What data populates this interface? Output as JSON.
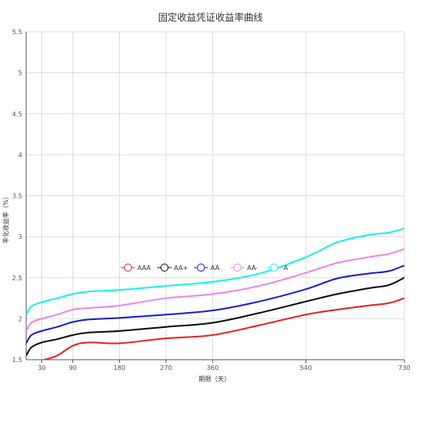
{
  "chart_data": {
    "type": "line",
    "title": "固定收益凭证收益率曲线",
    "xlabel": "期限（天）",
    "ylabel": "年化收益率（%）",
    "xlim": [
      0,
      730
    ],
    "ylim": [
      1.5,
      5.5
    ],
    "x_ticks": [
      30,
      90,
      180,
      270,
      360,
      540,
      730
    ],
    "y_ticks": [
      1.5,
      2,
      2.5,
      3,
      3.5,
      4,
      4.5,
      5,
      5.5
    ],
    "grid": true,
    "legend_position": "center",
    "series": [
      {
        "name": "AAA",
        "color": "#e52020",
        "points": [
          [
            20,
            1.48
          ],
          [
            30,
            1.49
          ],
          [
            60,
            1.55
          ],
          [
            90,
            1.67
          ],
          [
            120,
            1.71
          ],
          [
            180,
            1.7
          ],
          [
            270,
            1.76
          ],
          [
            360,
            1.8
          ],
          [
            450,
            1.92
          ],
          [
            540,
            2.05
          ],
          [
            600,
            2.11
          ],
          [
            660,
            2.16
          ],
          [
            700,
            2.19
          ],
          [
            730,
            2.25
          ]
        ]
      },
      {
        "name": "AA+",
        "color": "#0a0a0a",
        "points": [
          [
            0,
            1.55
          ],
          [
            10,
            1.65
          ],
          [
            30,
            1.71
          ],
          [
            60,
            1.75
          ],
          [
            90,
            1.8
          ],
          [
            120,
            1.83
          ],
          [
            180,
            1.85
          ],
          [
            270,
            1.9
          ],
          [
            360,
            1.95
          ],
          [
            450,
            2.07
          ],
          [
            540,
            2.21
          ],
          [
            600,
            2.3
          ],
          [
            660,
            2.37
          ],
          [
            700,
            2.41
          ],
          [
            730,
            2.5
          ]
        ]
      },
      {
        "name": "AA",
        "color": "#1a1ad4",
        "points": [
          [
            0,
            1.7
          ],
          [
            10,
            1.8
          ],
          [
            30,
            1.85
          ],
          [
            60,
            1.9
          ],
          [
            90,
            1.96
          ],
          [
            120,
            1.99
          ],
          [
            180,
            2.01
          ],
          [
            270,
            2.05
          ],
          [
            360,
            2.1
          ],
          [
            450,
            2.21
          ],
          [
            540,
            2.36
          ],
          [
            600,
            2.49
          ],
          [
            660,
            2.55
          ],
          [
            700,
            2.58
          ],
          [
            730,
            2.65
          ]
        ]
      },
      {
        "name": "AA-",
        "color": "#ee82ee",
        "points": [
          [
            0,
            1.85
          ],
          [
            10,
            1.95
          ],
          [
            30,
            2.0
          ],
          [
            60,
            2.05
          ],
          [
            90,
            2.11
          ],
          [
            120,
            2.13
          ],
          [
            180,
            2.16
          ],
          [
            270,
            2.25
          ],
          [
            360,
            2.3
          ],
          [
            450,
            2.4
          ],
          [
            540,
            2.56
          ],
          [
            600,
            2.68
          ],
          [
            660,
            2.75
          ],
          [
            700,
            2.79
          ],
          [
            730,
            2.85
          ]
        ]
      },
      {
        "name": "A",
        "color": "#18f0f0",
        "points": [
          [
            0,
            2.05
          ],
          [
            10,
            2.15
          ],
          [
            30,
            2.2
          ],
          [
            60,
            2.25
          ],
          [
            90,
            2.3
          ],
          [
            120,
            2.33
          ],
          [
            180,
            2.35
          ],
          [
            270,
            2.4
          ],
          [
            360,
            2.45
          ],
          [
            450,
            2.55
          ],
          [
            540,
            2.75
          ],
          [
            600,
            2.93
          ],
          [
            660,
            3.02
          ],
          [
            700,
            3.05
          ],
          [
            730,
            3.1
          ]
        ]
      }
    ]
  }
}
